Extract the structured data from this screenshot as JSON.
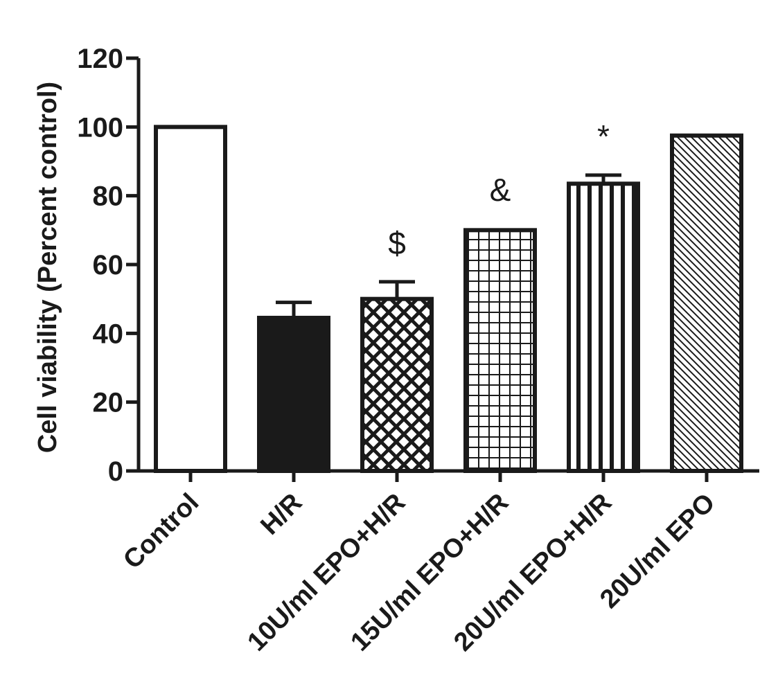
{
  "chart_data": {
    "type": "bar",
    "title": "",
    "xlabel": "",
    "ylabel": "Cell viability (Percent control)",
    "ylim": [
      0,
      120
    ],
    "yticks": [
      0,
      20,
      40,
      60,
      80,
      100,
      120
    ],
    "grid": false,
    "categories": [
      "Control",
      "H/R",
      "10U/ml EPO+H/R",
      "15U/ml EPO+H/R",
      "20U/ml EPO+H/R",
      "20U/ml EPO"
    ],
    "values": [
      100,
      44.5,
      50,
      70,
      83.5,
      97.5
    ],
    "errors": [
      0,
      4.5,
      5,
      0.5,
      2.5,
      0.5
    ],
    "patterns": [
      "open",
      "solid",
      "crosshatch",
      "grid",
      "vertical-stripes",
      "diagonal"
    ],
    "annotations": [
      "",
      "",
      "$",
      "&",
      "*",
      ""
    ],
    "colors": {
      "ink": "#1a1a1a",
      "fill": "#ffffff"
    }
  }
}
